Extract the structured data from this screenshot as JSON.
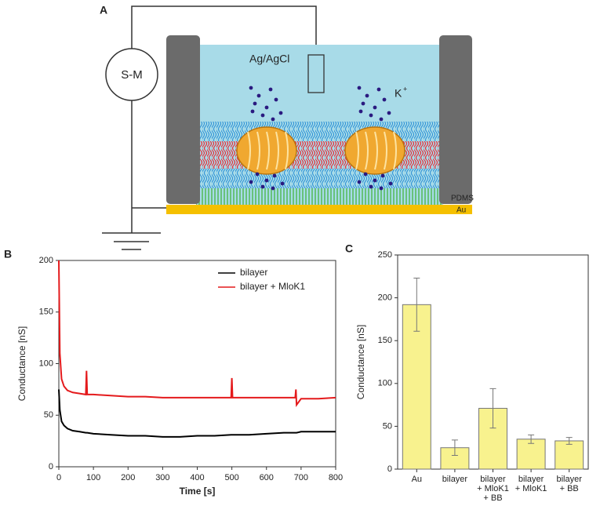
{
  "diagram": {
    "panel": "A",
    "meter": "S-M",
    "electrode": "Ag/AgCl",
    "ion": "K",
    "ion_charge": "+",
    "wall": "PDMS",
    "substrate": "Au"
  },
  "chart_data": [
    {
      "type": "line",
      "panel": "B",
      "xlabel": "Time [s]",
      "ylabel": "Conductance [nS]",
      "xlim": [
        0,
        800
      ],
      "xticks": [
        0,
        100,
        200,
        300,
        400,
        500,
        600,
        700,
        800
      ],
      "ylim": [
        0,
        200
      ],
      "yticks": [
        0,
        50,
        100,
        150,
        200
      ],
      "legend": "top-right",
      "x": [
        0,
        3,
        8,
        15,
        25,
        40,
        60,
        78,
        80,
        82,
        100,
        150,
        200,
        250,
        300,
        350,
        400,
        450,
        498,
        500,
        502,
        550,
        600,
        650,
        683,
        685,
        687,
        700,
        750,
        800
      ],
      "series": [
        {
          "name": "bilayer",
          "color": "#000000",
          "values": [
            75,
            55,
            44,
            40,
            37,
            35,
            34,
            33,
            33,
            33,
            32,
            31,
            30,
            30,
            29,
            29,
            30,
            30,
            31,
            31,
            31,
            31,
            32,
            33,
            33,
            33,
            33,
            34,
            34,
            34
          ]
        },
        {
          "name": "bilayer + MloK1",
          "color": "#e41a1c",
          "values": [
            200,
            110,
            85,
            78,
            74,
            72,
            71,
            70,
            93,
            70,
            70,
            69,
            68,
            68,
            67,
            67,
            67,
            67,
            67,
            86,
            67,
            67,
            67,
            67,
            67,
            75,
            60,
            66,
            66,
            67
          ]
        }
      ]
    },
    {
      "type": "bar",
      "panel": "C",
      "ylabel": "Conductance [nS]",
      "categories": [
        [
          "Au"
        ],
        [
          "bilayer"
        ],
        [
          "bilayer",
          "+ MloK1",
          "+ BB"
        ],
        [
          "bilayer",
          "+ MloK1"
        ],
        [
          "bilayer",
          "+ BB"
        ]
      ],
      "values": [
        192,
        25,
        71,
        35,
        33
      ],
      "errors": [
        31,
        9,
        23,
        5,
        4
      ],
      "color": "#f8f28e",
      "ylim": [
        0,
        250
      ],
      "yticks": [
        0,
        50,
        100,
        150,
        200,
        250
      ]
    }
  ]
}
